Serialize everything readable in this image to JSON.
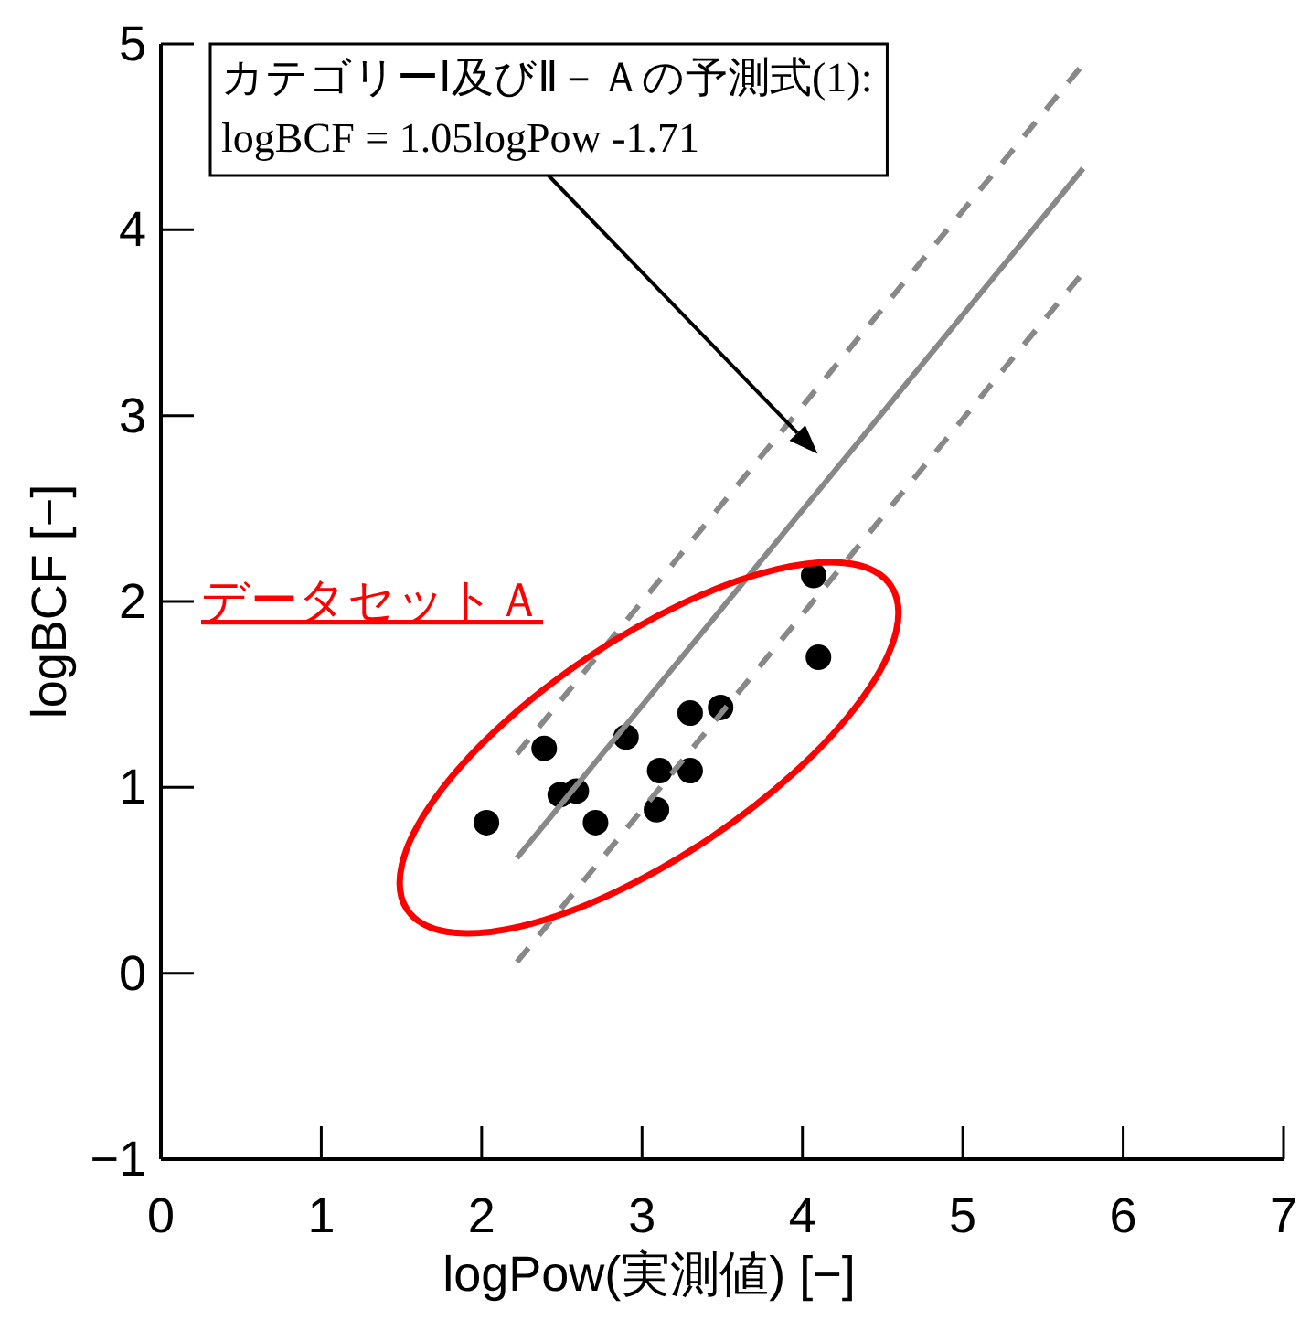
{
  "chart_data": {
    "type": "scatter",
    "xlabel": "logPow(実測値) [−]",
    "ylabel": "logBCF [−]",
    "xlim": [
      0,
      7
    ],
    "ylim": [
      -1,
      5
    ],
    "xticks": [
      0,
      1,
      2,
      3,
      4,
      5,
      6,
      7
    ],
    "yticks": [
      {
        "value": -1,
        "label": "−1"
      },
      0,
      1,
      2,
      3,
      4,
      5
    ],
    "marker": "circle",
    "series": [
      {
        "color": "#000000",
        "x": [
          2.03,
          2.39,
          2.49,
          2.59,
          2.71,
          2.9,
          3.09,
          3.11,
          3.3,
          3.3,
          3.49,
          4.07,
          4.1
        ],
        "values": [
          0.81,
          1.21,
          0.96,
          0.98,
          0.81,
          1.27,
          0.88,
          1.09,
          1.4,
          1.09,
          1.43,
          2.14,
          1.7
        ]
      },
      {
        "type": "line",
        "marker": "none",
        "line_style": "solid",
        "color": "#888888",
        "x": [
          2.22,
          5.75
        ],
        "values": [
          0.62,
          4.33
        ]
      },
      {
        "type": "line",
        "marker": "none",
        "line_style": "dashed",
        "color": "#888888",
        "x": [
          2.22,
          5.75
        ],
        "values": [
          1.18,
          4.89
        ]
      },
      {
        "type": "line",
        "marker": "none",
        "line_style": "dashed",
        "color": "#888888",
        "x": [
          2.22,
          5.75
        ],
        "values": [
          0.06,
          3.77
        ]
      }
    ],
    "annotations": [
      "カテゴリーⅠ及びⅡ－Ａの予測式(1):\nlogBCF = 1.05logPow -1.71",
      "データセットＡ"
    ]
  }
}
